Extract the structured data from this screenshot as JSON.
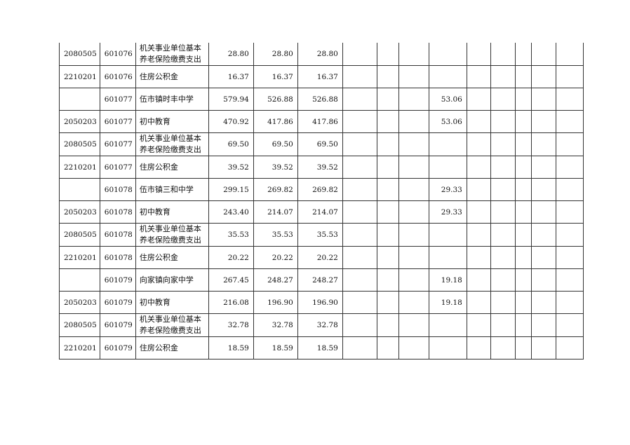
{
  "rows": [
    {
      "func": "2080505",
      "unit": "601076",
      "name": "机关事业单位基本养老保险缴费支出",
      "total": "28.80",
      "c1": "28.80",
      "c2": "28.80",
      "c6": ""
    },
    {
      "func": "2210201",
      "unit": "601076",
      "name": "住房公积金",
      "total": "16.37",
      "c1": "16.37",
      "c2": "16.37",
      "c6": ""
    },
    {
      "func": "",
      "unit": "601077",
      "name": "伍市镇时丰中学",
      "total": "579.94",
      "c1": "526.88",
      "c2": "526.88",
      "c6": "53.06"
    },
    {
      "func": "2050203",
      "unit": "601077",
      "name": "初中教育",
      "total": "470.92",
      "c1": "417.86",
      "c2": "417.86",
      "c6": "53.06"
    },
    {
      "func": "2080505",
      "unit": "601077",
      "name": "机关事业单位基本养老保险缴费支出",
      "total": "69.50",
      "c1": "69.50",
      "c2": "69.50",
      "c6": ""
    },
    {
      "func": "2210201",
      "unit": "601077",
      "name": "住房公积金",
      "total": "39.52",
      "c1": "39.52",
      "c2": "39.52",
      "c6": ""
    },
    {
      "func": "",
      "unit": "601078",
      "name": "伍市镇三和中学",
      "total": "299.15",
      "c1": "269.82",
      "c2": "269.82",
      "c6": "29.33"
    },
    {
      "func": "2050203",
      "unit": "601078",
      "name": "初中教育",
      "total": "243.40",
      "c1": "214.07",
      "c2": "214.07",
      "c6": "29.33"
    },
    {
      "func": "2080505",
      "unit": "601078",
      "name": "机关事业单位基本养老保险缴费支出",
      "total": "35.53",
      "c1": "35.53",
      "c2": "35.53",
      "c6": ""
    },
    {
      "func": "2210201",
      "unit": "601078",
      "name": "住房公积金",
      "total": "20.22",
      "c1": "20.22",
      "c2": "20.22",
      "c6": ""
    },
    {
      "func": "",
      "unit": "601079",
      "name": "向家镇向家中学",
      "total": "267.45",
      "c1": "248.27",
      "c2": "248.27",
      "c6": "19.18"
    },
    {
      "func": "2050203",
      "unit": "601079",
      "name": "初中教育",
      "total": "216.08",
      "c1": "196.90",
      "c2": "196.90",
      "c6": "19.18"
    },
    {
      "func": "2080505",
      "unit": "601079",
      "name": "机关事业单位基本养老保险缴费支出",
      "total": "32.78",
      "c1": "32.78",
      "c2": "32.78",
      "c6": ""
    },
    {
      "func": "2210201",
      "unit": "601079",
      "name": "住房公积金",
      "total": "18.59",
      "c1": "18.59",
      "c2": "18.59",
      "c6": ""
    }
  ]
}
